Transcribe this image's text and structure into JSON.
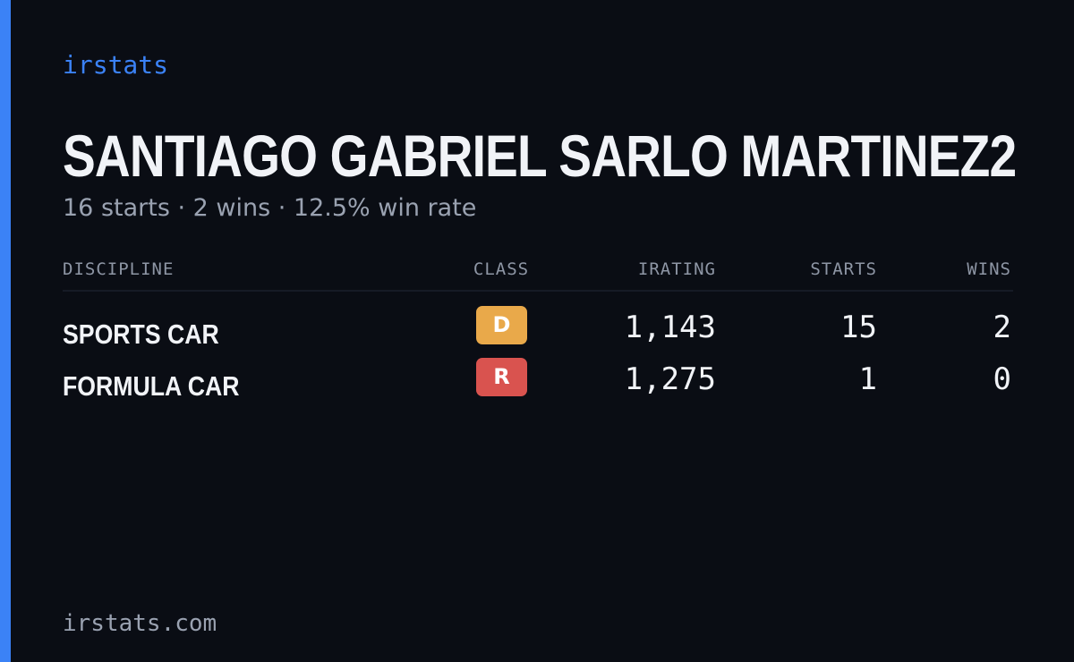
{
  "brand": "irstats",
  "driver": {
    "name": "SANTIAGO GABRIEL SARLO MARTINEZ2",
    "summary": "16 starts · 2 wins · 12.5% win rate"
  },
  "table": {
    "headers": {
      "discipline": "DISCIPLINE",
      "class": "CLASS",
      "irating": "IRATING",
      "starts": "STARTS",
      "wins": "WINS"
    },
    "rows": [
      {
        "discipline": "SPORTS CAR",
        "class": "D",
        "class_color": "#e9a94a",
        "irating": "1,143",
        "starts": "15",
        "wins": "2"
      },
      {
        "discipline": "FORMULA CAR",
        "class": "R",
        "class_color": "#d9534f",
        "irating": "1,275",
        "starts": "1",
        "wins": "0"
      }
    ]
  },
  "footer": "irstats.com",
  "colors": {
    "background": "#0a0d14",
    "accent": "#3b82f6",
    "text": "#f1f3f7",
    "muted": "#9aa2b1"
  }
}
